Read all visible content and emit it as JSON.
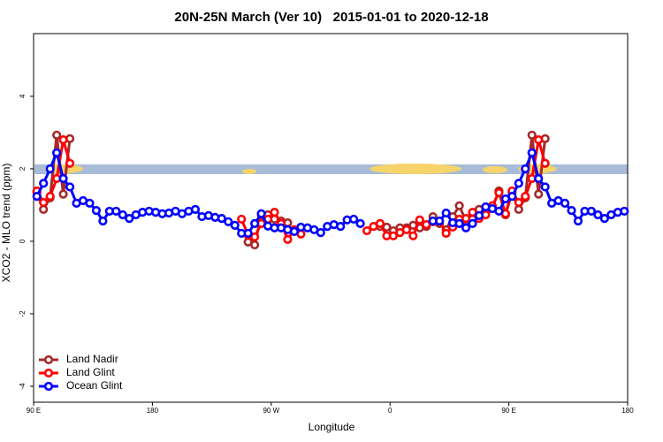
{
  "chart_data": {
    "type": "line",
    "title": "20N-25N March (Ver 10)   2015-01-01 to 2020-12-18",
    "xlabel": "Longitude",
    "ylabel": "XCO2 - MLO trend (ppm)",
    "xlim": [
      90,
      540
    ],
    "ylim": [
      -4.44,
      5.73
    ],
    "xticks": [
      {
        "value": 90,
        "label": "90 E"
      },
      180,
      {
        "value": 270,
        "label": "90 W"
      },
      {
        "value": 360,
        "label": "0"
      },
      {
        "value": 450,
        "label": "90 E"
      },
      {
        "value": 540,
        "label": "180"
      }
    ],
    "yticks": [
      -4,
      -2,
      0,
      2,
      4
    ],
    "legend": "bottom-left",
    "x": [
      92.5,
      97.5,
      102.5,
      107.5,
      112.5,
      117.5,
      122.5,
      127.5,
      132.5,
      137.5,
      142.5,
      147.5,
      152.5,
      157.5,
      162.5,
      167.5,
      172.5,
      177.5,
      182.5,
      187.5,
      192.5,
      197.5,
      202.5,
      207.5,
      212.5,
      217.5,
      222.5,
      227.5,
      232.5,
      237.5,
      242.5,
      247.5,
      252.5,
      257.5,
      262.5,
      267.5,
      272.5,
      277.5,
      282.5,
      287.5,
      292.5,
      297.5,
      302.5,
      307.5,
      312.5,
      317.5,
      322.5,
      327.5,
      332.5,
      337.5,
      342.5,
      347.5,
      352.5,
      357.5,
      362.5,
      367.5,
      372.5,
      377.5,
      382.5,
      387.5,
      392.5,
      397.5,
      402.5,
      407.5,
      412.5,
      417.5,
      422.5,
      427.5,
      432.5,
      437.5,
      442.5,
      447.5,
      452.5,
      457.5,
      462.5,
      467.5,
      472.5,
      477.5,
      482.5,
      487.5,
      492.5,
      497.5,
      502.5,
      507.5,
      512.5,
      517.5,
      522.5,
      527.5,
      532.5,
      537.5
    ],
    "series": [
      {
        "name": "Land Nadir",
        "color": "#a52a2a",
        "values": [
          1.34,
          0.88,
          1.2,
          2.93,
          1.3,
          2.83,
          null,
          null,
          null,
          null,
          null,
          null,
          null,
          null,
          null,
          null,
          null,
          null,
          null,
          null,
          null,
          null,
          null,
          null,
          null,
          null,
          null,
          null,
          null,
          null,
          null,
          null,
          -0.02,
          -0.1,
          0.73,
          0.73,
          0.61,
          0.56,
          0.51,
          null,
          null,
          null,
          null,
          null,
          null,
          null,
          null,
          null,
          null,
          null,
          null,
          null,
          0.41,
          0.39,
          0.29,
          0.37,
          0.37,
          0.44,
          0.37,
          0.41,
          0.68,
          0.49,
          0.32,
          0.68,
          0.98,
          0.56,
          0.61,
          0.88,
          0.8,
          0.93,
          1.39,
          0.73,
          1.34,
          0.88,
          1.2,
          2.93,
          1.3,
          2.83,
          null,
          null,
          null,
          null,
          null,
          null,
          null,
          null,
          null,
          null,
          null,
          null
        ]
      },
      {
        "name": "Land Glint",
        "color": "#ff0000",
        "values": [
          1.39,
          1.07,
          1.24,
          1.73,
          2.8,
          2.15,
          null,
          null,
          null,
          null,
          null,
          null,
          null,
          null,
          null,
          null,
          null,
          null,
          null,
          null,
          null,
          null,
          null,
          null,
          null,
          null,
          null,
          null,
          null,
          null,
          null,
          0.61,
          0.17,
          0.12,
          0.49,
          0.61,
          0.8,
          0.49,
          0.05,
          0.32,
          0.2,
          null,
          null,
          null,
          null,
          null,
          null,
          null,
          null,
          null,
          0.29,
          0.41,
          0.49,
          0.15,
          0.15,
          0.24,
          0.32,
          0.15,
          0.59,
          0.46,
          0.54,
          0.56,
          0.22,
          0.39,
          0.61,
          0.63,
          0.8,
          0.63,
          0.73,
          0.98,
          1.34,
          0.76,
          1.39,
          1.07,
          1.24,
          1.73,
          2.8,
          2.15,
          null,
          null,
          null,
          null,
          null,
          null,
          null,
          null,
          null,
          null,
          null,
          null
        ]
      },
      {
        "name": "Ocean Glint",
        "color": "#0000ff",
        "values": [
          1.24,
          1.6,
          2.0,
          2.44,
          1.73,
          1.5,
          1.05,
          1.12,
          1.05,
          0.85,
          0.56,
          0.83,
          0.83,
          0.73,
          0.63,
          0.73,
          0.8,
          0.83,
          0.8,
          0.76,
          0.78,
          0.83,
          0.76,
          0.83,
          0.88,
          0.68,
          0.71,
          0.66,
          0.63,
          0.54,
          0.44,
          0.22,
          0.22,
          0.49,
          0.76,
          0.42,
          0.37,
          0.37,
          0.32,
          0.27,
          0.39,
          0.37,
          0.32,
          0.24,
          0.41,
          0.46,
          0.41,
          0.59,
          0.61,
          0.49,
          null,
          null,
          null,
          null,
          null,
          null,
          null,
          null,
          null,
          null,
          0.56,
          0.56,
          0.78,
          0.51,
          0.49,
          0.37,
          0.49,
          0.71,
          0.95,
          0.9,
          0.83,
          1.17,
          1.24,
          1.6,
          2.0,
          2.44,
          1.73,
          1.5,
          1.05,
          1.12,
          1.05,
          0.85,
          0.56,
          0.83,
          0.83,
          0.73,
          0.63,
          0.73,
          0.8,
          0.83
        ]
      }
    ]
  }
}
